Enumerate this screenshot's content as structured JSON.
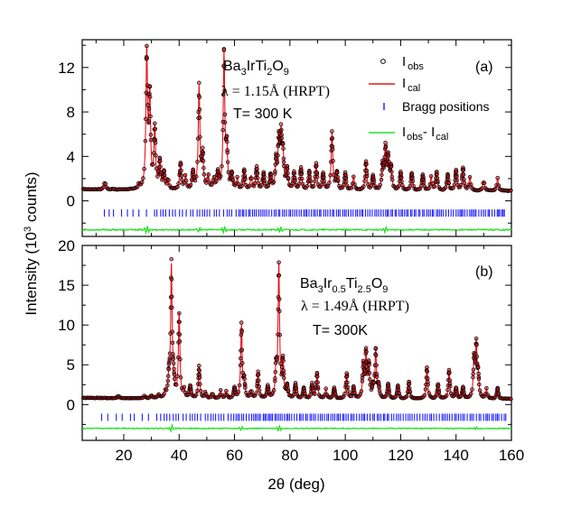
{
  "figure": {
    "ylabel": "Intensity (10",
    "ylabel_sup": "3",
    "ylabel_tail": " counts)",
    "xlabel": "2θ (deg)",
    "x_ticks": [
      "20",
      "40",
      "60",
      "80",
      "100",
      "120",
      "140",
      "160"
    ]
  },
  "panels": [
    {
      "tag": "(a)",
      "formula": [
        "Ba",
        "3",
        "IrTi",
        "2",
        "O",
        "9"
      ],
      "lambda": "λ = 1.15Å (HRPT)",
      "temp": "T= 300 K",
      "y_ticks": [
        "0",
        "4",
        "8",
        "12"
      ],
      "legend": {
        "obs": "I",
        "obs_sub": "obs",
        "cal": "I",
        "cal_sub": "cal",
        "bragg": "Bragg positions",
        "diff": "I",
        "diff_sub1": "obs",
        "diff_mid": "- I",
        "diff_sub2": "cal"
      }
    },
    {
      "tag": "(b)",
      "formula": [
        "Ba",
        "3",
        "Ir",
        "0.5",
        "Ti",
        "2.5",
        "O",
        "9"
      ],
      "lambda": "λ = 1.49Å (HRPT)",
      "temp": "T= 300K",
      "y_ticks": [
        "0",
        "5",
        "10",
        "15",
        "20"
      ]
    }
  ],
  "colors": {
    "obs": "#000000",
    "cal": "#e8121c",
    "bragg": "#1a1aff",
    "diff": "#22e022",
    "frame": "#000000"
  },
  "chart_data": [
    {
      "type": "scatter",
      "panel": "(a)",
      "xlabel": "2θ (deg)",
      "ylabel": "Intensity (10^3 counts)",
      "xlim": [
        5,
        160
      ],
      "ylim": [
        -3.2,
        14.5
      ],
      "background": 0.9,
      "peaks": [
        [
          13.2,
          0.7
        ],
        [
          25.5,
          0.4
        ],
        [
          28.3,
          12.2
        ],
        [
          29.4,
          8.0
        ],
        [
          31.2,
          5.4
        ],
        [
          33.0,
          2.4
        ],
        [
          34.5,
          1.5
        ],
        [
          36.0,
          0.9
        ],
        [
          40.5,
          2.4
        ],
        [
          42.3,
          1.2
        ],
        [
          45.0,
          1.5
        ],
        [
          47.2,
          9.2
        ],
        [
          48.5,
          3.0
        ],
        [
          50.5,
          1.2
        ],
        [
          52.5,
          1.0
        ],
        [
          54.0,
          1.4
        ],
        [
          56.2,
          12.0
        ],
        [
          57.2,
          3.5
        ],
        [
          59.0,
          1.3
        ],
        [
          61.0,
          1.0
        ],
        [
          63.5,
          1.8
        ],
        [
          66.0,
          1.2
        ],
        [
          68.0,
          2.0
        ],
        [
          70.5,
          1.5
        ],
        [
          73.0,
          1.3
        ],
        [
          75.0,
          2.5
        ],
        [
          76.0,
          4.2
        ],
        [
          76.8,
          4.4
        ],
        [
          77.5,
          3.0
        ],
        [
          79.0,
          1.8
        ],
        [
          81.5,
          1.5
        ],
        [
          84.0,
          2.0
        ],
        [
          87.0,
          1.6
        ],
        [
          89.5,
          2.3
        ],
        [
          92.0,
          1.5
        ],
        [
          95.2,
          5.2
        ],
        [
          97.0,
          1.5
        ],
        [
          100.0,
          1.5
        ],
        [
          103.0,
          1.2
        ],
        [
          107.5,
          2.6
        ],
        [
          110.0,
          1.3
        ],
        [
          113.5,
          2.2
        ],
        [
          114.5,
          3.6
        ],
        [
          115.5,
          2.8
        ],
        [
          116.5,
          2.0
        ],
        [
          120.0,
          1.6
        ],
        [
          124.0,
          1.6
        ],
        [
          128.0,
          1.4
        ],
        [
          131.0,
          1.2
        ],
        [
          133.0,
          1.6
        ],
        [
          137.0,
          1.4
        ],
        [
          140.0,
          1.8
        ],
        [
          142.5,
          2.0
        ],
        [
          145.0,
          1.2
        ],
        [
          150.0,
          0.9
        ],
        [
          155.0,
          1.1
        ]
      ],
      "bragg_y": -1.1,
      "diff_offset": -2.6,
      "diff_features": [
        [
          28.3,
          0.35
        ],
        [
          56.2,
          0.3
        ],
        [
          76.5,
          0.25
        ],
        [
          47.2,
          0.2
        ],
        [
          114.5,
          0.2
        ]
      ],
      "bragg_range": [
        13,
        158
      ]
    },
    {
      "type": "scatter",
      "panel": "(b)",
      "xlabel": "2θ (deg)",
      "ylabel": "Intensity (10^3 counts)",
      "xlim": [
        5,
        160
      ],
      "ylim": [
        -4.5,
        20
      ],
      "background": 0.7,
      "peaks": [
        [
          18.0,
          0.3
        ],
        [
          27.5,
          0.3
        ],
        [
          30.0,
          0.4
        ],
        [
          32.5,
          0.4
        ],
        [
          35.0,
          0.6
        ],
        [
          36.3,
          2.3
        ],
        [
          37.2,
          16.5
        ],
        [
          38.0,
          1.8
        ],
        [
          40.0,
          10.6
        ],
        [
          41.8,
          1.0
        ],
        [
          44.0,
          1.5
        ],
        [
          47.2,
          4.0
        ],
        [
          49.5,
          0.8
        ],
        [
          52.0,
          0.7
        ],
        [
          55.0,
          1.0
        ],
        [
          57.0,
          0.9
        ],
        [
          60.0,
          1.3
        ],
        [
          62.5,
          9.1
        ],
        [
          63.5,
          2.0
        ],
        [
          66.0,
          1.0
        ],
        [
          68.5,
          3.3
        ],
        [
          72.0,
          1.5
        ],
        [
          75.0,
          3.5
        ],
        [
          76.0,
          16.7
        ],
        [
          77.5,
          4.5
        ],
        [
          79.0,
          1.5
        ],
        [
          82.0,
          1.8
        ],
        [
          85.0,
          1.3
        ],
        [
          88.0,
          1.8
        ],
        [
          89.8,
          3.1
        ],
        [
          93.0,
          1.2
        ],
        [
          96.0,
          1.3
        ],
        [
          100.5,
          3.1
        ],
        [
          103.0,
          1.4
        ],
        [
          106.5,
          4.0
        ],
        [
          107.5,
          5.6
        ],
        [
          108.5,
          4.1
        ],
        [
          110.0,
          1.3
        ],
        [
          111.0,
          5.9
        ],
        [
          112.0,
          1.5
        ],
        [
          115.5,
          1.8
        ],
        [
          119.0,
          1.6
        ],
        [
          123.0,
          2.1
        ],
        [
          129.5,
          4.0
        ],
        [
          133.5,
          1.8
        ],
        [
          137.5,
          3.6
        ],
        [
          140.0,
          1.3
        ],
        [
          142.5,
          1.4
        ],
        [
          146.5,
          4.8
        ],
        [
          147.3,
          6.5
        ],
        [
          148.0,
          2.5
        ],
        [
          151.0,
          1.2
        ],
        [
          155.0,
          1.3
        ]
      ],
      "bragg_y": -1.6,
      "diff_offset": -3.0,
      "diff_features": [
        [
          37.2,
          0.4
        ],
        [
          76.0,
          0.4
        ],
        [
          62.5,
          0.2
        ],
        [
          147.3,
          0.2
        ]
      ],
      "bragg_range": [
        12,
        158
      ]
    }
  ]
}
